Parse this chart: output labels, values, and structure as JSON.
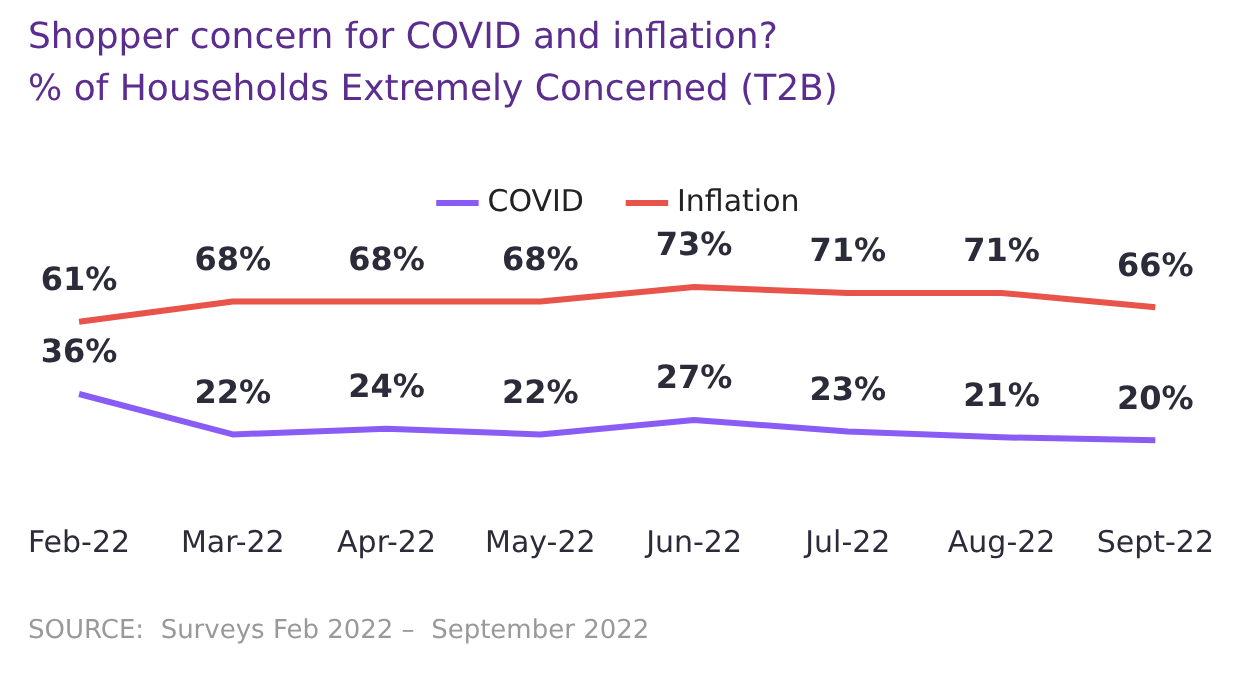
{
  "chart_data": {
    "type": "line",
    "title": "Shopper concern for COVID and inflation?",
    "subtitle": "% of Households Extremely Concerned (T2B)",
    "categories": [
      "Feb-22",
      "Mar-22",
      "Apr-22",
      "May-22",
      "Jun-22",
      "Jul-22",
      "Aug-22",
      "Sept-22"
    ],
    "series": [
      {
        "name": "COVID",
        "color": "#8a5cf6",
        "values": [
          36,
          22,
          24,
          22,
          27,
          23,
          21,
          20
        ],
        "value_labels": [
          "36%",
          "22%",
          "24%",
          "22%",
          "27%",
          "23%",
          "21%",
          "20%"
        ]
      },
      {
        "name": "Inflation",
        "color": "#e8534a",
        "values": [
          61,
          68,
          68,
          68,
          73,
          71,
          71,
          66
        ],
        "value_labels": [
          "61%",
          "68%",
          "68%",
          "68%",
          "73%",
          "71%",
          "71%",
          "66%"
        ]
      }
    ],
    "legend": "top",
    "grid": false,
    "marker": "none",
    "line_style": "solid",
    "annotations": [
      "SOURCE:  Surveys Feb 2022 –  September 2022"
    ]
  }
}
